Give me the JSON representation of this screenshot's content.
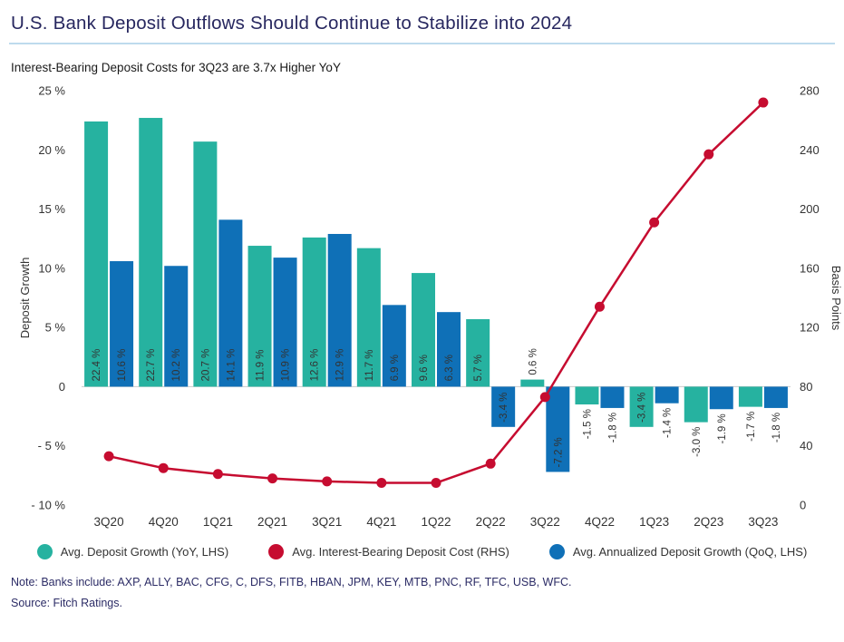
{
  "header": {
    "title": "U.S. Bank Deposit Outflows Should Continue to Stabilize into 2024",
    "subtitle": "Interest-Bearing Deposit Costs for 3Q23 are 3.7x Higher YoY"
  },
  "colors": {
    "title_navy": "#27275f",
    "title_rule": "#bedbed",
    "teal": "#26b2a0",
    "blue": "#0f70b7",
    "red": "#c60c30",
    "axis_text": "#333333",
    "zero_line": "#cccccc",
    "note_text": "#2c2c66"
  },
  "chart_data": {
    "type": "combo_bar_line",
    "categories": [
      "3Q20",
      "4Q20",
      "1Q21",
      "2Q21",
      "3Q21",
      "4Q21",
      "1Q22",
      "2Q22",
      "3Q22",
      "4Q22",
      "1Q23",
      "2Q23",
      "3Q23"
    ],
    "series": [
      {
        "name": "Avg. Deposit Growth (YoY, LHS)",
        "type": "bar",
        "axis": "left",
        "color": "#26b2a0",
        "values": [
          22.4,
          22.7,
          20.7,
          11.9,
          12.6,
          11.7,
          9.6,
          5.7,
          0.6,
          -1.5,
          -3.4,
          -3.0,
          -1.7
        ]
      },
      {
        "name": "Avg. Annualized Deposit Growth (QoQ, LHS)",
        "type": "bar",
        "axis": "left",
        "color": "#0f70b7",
        "values": [
          10.6,
          10.2,
          14.1,
          10.9,
          12.9,
          6.9,
          6.3,
          -3.4,
          -7.2,
          -1.8,
          -1.4,
          -1.9,
          -1.8
        ]
      },
      {
        "name": "Avg. Interest-Bearing Deposit Cost (RHS)",
        "type": "line",
        "axis": "right",
        "color": "#c60c30",
        "values": [
          33,
          25,
          21,
          18,
          16,
          15,
          15,
          28,
          73,
          134,
          191,
          237,
          272
        ]
      }
    ],
    "left_axis": {
      "label": "Deposit Growth",
      "min": -10,
      "max": 25,
      "ticks": [
        25,
        20,
        15,
        10,
        5,
        0,
        -5,
        -10
      ],
      "tick_labels": [
        "25 %",
        "20 %",
        "15 %",
        "10 %",
        "5 %",
        "0",
        "- 5 %",
        "- 10 %"
      ]
    },
    "right_axis": {
      "label": "Basis Points",
      "min": 0,
      "max": 280,
      "ticks": [
        280,
        240,
        200,
        160,
        120,
        80,
        40,
        0
      ],
      "tick_labels": [
        "280",
        "240",
        "200",
        "160",
        "120",
        "80",
        "40",
        "0"
      ]
    },
    "grid": "zero-line-only",
    "legend_position": "bottom-center",
    "legend": [
      {
        "label": "Avg. Deposit Growth (YoY, LHS)",
        "color": "#26b2a0"
      },
      {
        "label": "Avg. Interest-Bearing Deposit Cost (RHS)",
        "color": "#c60c30"
      },
      {
        "label": "Avg. Annualized Deposit Growth (QoQ, LHS)",
        "color": "#0f70b7"
      }
    ]
  },
  "footer": {
    "note": "Note: Banks include: AXP, ALLY, BAC, CFG, C, DFS, FITB, HBAN, JPM, KEY, MTB, PNC, RF, TFC, USB, WFC.",
    "source": "Source: Fitch Ratings."
  }
}
